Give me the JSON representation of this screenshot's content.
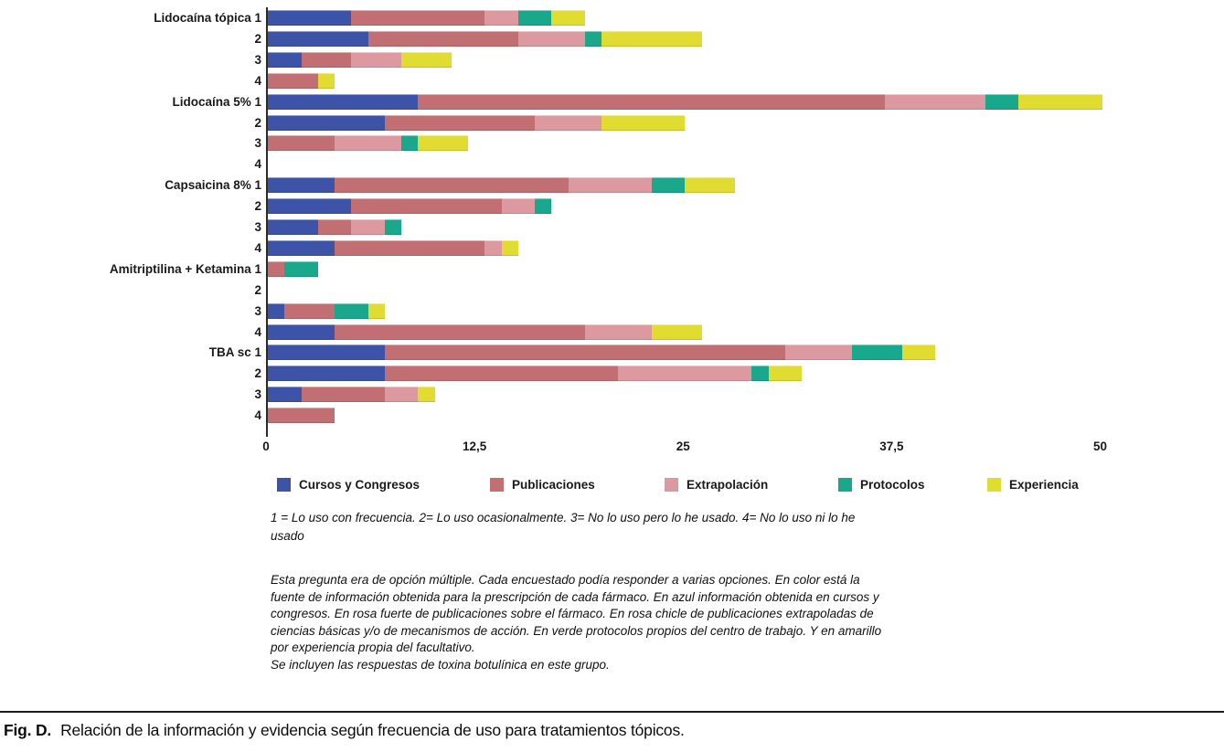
{
  "chart_data": {
    "type": "bar",
    "orientation": "horizontal-stacked",
    "xlabel": "",
    "ylabel": "",
    "xlim": [
      0,
      50
    ],
    "x_tick_values": [
      0,
      12.5,
      25,
      37.5,
      50
    ],
    "x_tick_labels": [
      "0",
      "12,5",
      "25",
      "37,5",
      "50"
    ],
    "grid": false,
    "legend_position": "bottom",
    "series_names": [
      "Cursos y Congresos",
      "Publicaciones",
      "Extrapolación",
      "Protocolos",
      "Experiencia"
    ],
    "series_colors": [
      "#3D53A7",
      "#C16F72",
      "#DC9AA0",
      "#19A88B",
      "#E0DC31"
    ],
    "groups": [
      {
        "name": "Lidocaína tópica",
        "rows": [
          {
            "label": "1",
            "values": [
              5,
              8,
              2,
              2,
              2
            ]
          },
          {
            "label": "2",
            "values": [
              6,
              9,
              4,
              1,
              6
            ]
          },
          {
            "label": "3",
            "values": [
              2,
              3,
              3,
              0,
              3
            ]
          },
          {
            "label": "4",
            "values": [
              0,
              3,
              0,
              0,
              1
            ]
          }
        ]
      },
      {
        "name": "Lidocaína 5%",
        "rows": [
          {
            "label": "1",
            "values": [
              9,
              28,
              6,
              2,
              5
            ]
          },
          {
            "label": "2",
            "values": [
              7,
              9,
              4,
              0,
              5
            ]
          },
          {
            "label": "3",
            "values": [
              0,
              4,
              4,
              1,
              3
            ]
          },
          {
            "label": "4",
            "values": [
              0,
              0,
              0,
              0,
              0
            ]
          }
        ]
      },
      {
        "name": "Capsaicina 8%",
        "rows": [
          {
            "label": "1",
            "values": [
              4,
              14,
              5,
              2,
              3
            ]
          },
          {
            "label": "2",
            "values": [
              5,
              9,
              2,
              1,
              0
            ]
          },
          {
            "label": "3",
            "values": [
              3,
              2,
              2,
              1,
              0
            ]
          },
          {
            "label": "4",
            "values": [
              4,
              9,
              1,
              0,
              1
            ]
          }
        ]
      },
      {
        "name": "Amitriptilina + Ketamina",
        "rows": [
          {
            "label": "1",
            "values": [
              0,
              1,
              0,
              2,
              0
            ]
          },
          {
            "label": "2",
            "values": [
              0,
              0,
              0,
              0,
              0
            ]
          },
          {
            "label": "3",
            "values": [
              1,
              3,
              0,
              2,
              1
            ]
          },
          {
            "label": "4",
            "values": [
              4,
              15,
              4,
              0,
              3
            ]
          }
        ]
      },
      {
        "name": "TBA sc",
        "rows": [
          {
            "label": "1",
            "values": [
              7,
              24,
              4,
              3,
              2
            ]
          },
          {
            "label": "2",
            "values": [
              7,
              14,
              8,
              1,
              2
            ]
          },
          {
            "label": "3",
            "values": [
              2,
              5,
              2,
              0,
              1
            ]
          },
          {
            "label": "4",
            "values": [
              0,
              4,
              0,
              0,
              0
            ]
          }
        ]
      }
    ]
  },
  "notes_lines": [
    "1 = Lo uso con frecuencia. 2= Lo uso ocasionalmente. 3= No lo uso pero lo he usado. 4= No lo uso ni lo he",
    "usado"
  ],
  "description_lines": [
    "Esta pregunta era de opción múltiple. Cada encuestado podía responder a varias opciones. En color está la",
    "fuente de información obtenida para la prescripción de cada fármaco. En azul información obtenida en cursos y",
    "congresos. En rosa fuerte de publicaciones sobre el fármaco. En rosa chicle de publicaciones extrapoladas de",
    "ciencias básicas y/o de mecanismos de acción. En verde protocolos propios del centro de trabajo. Y en amarillo",
    "por experiencia propia del facultativo.",
    "Se incluyen las respuestas de toxina botulínica en este grupo."
  ],
  "caption": {
    "label": "Fig. D.",
    "text": "Relación de la información y evidencia según frecuencia de uso para tratamientos tópicos."
  }
}
